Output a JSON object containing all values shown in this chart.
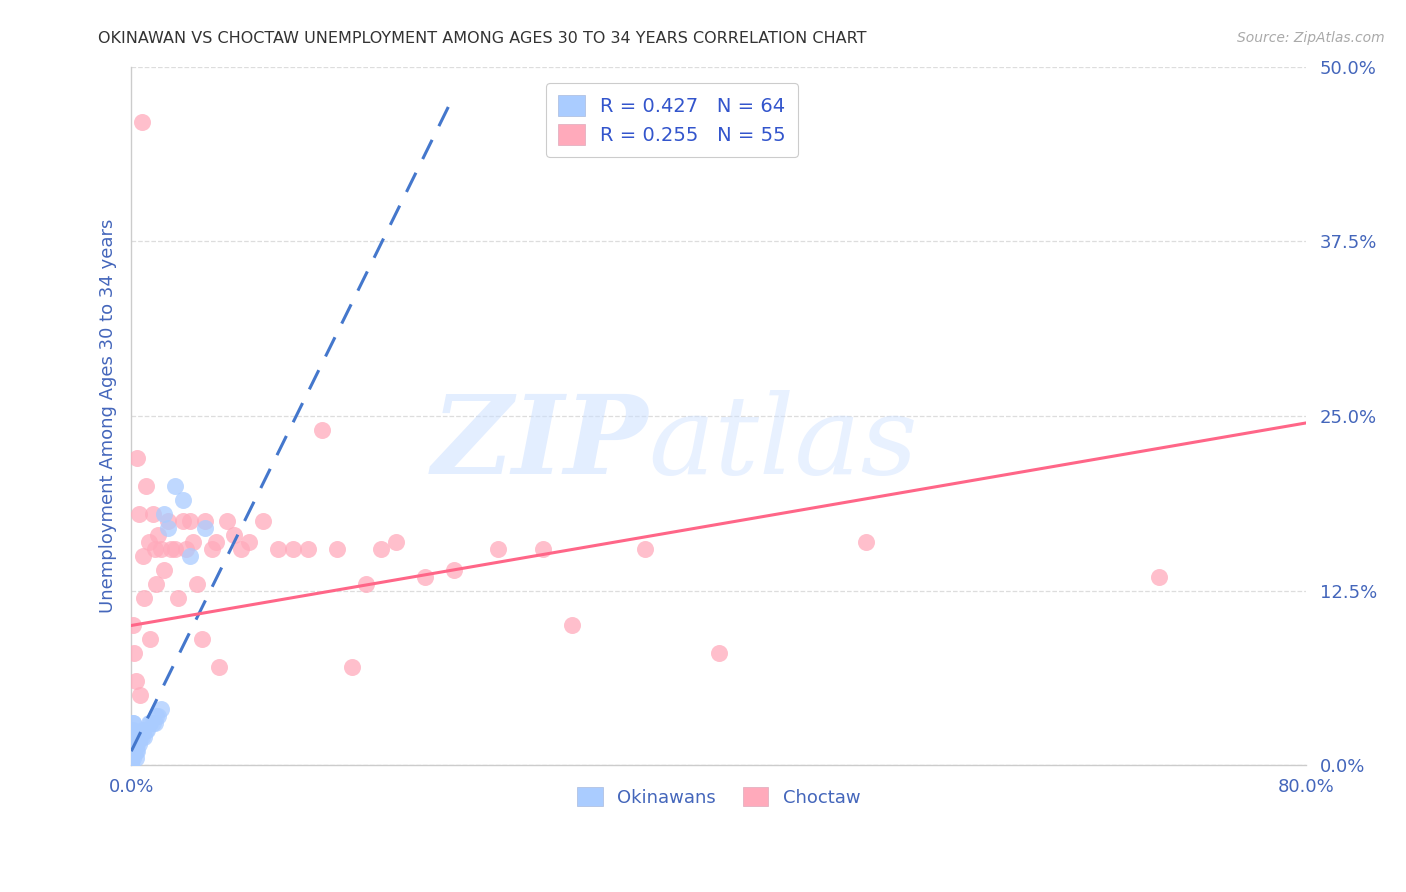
{
  "title": "OKINAWAN VS CHOCTAW UNEMPLOYMENT AMONG AGES 30 TO 34 YEARS CORRELATION CHART",
  "source": "Source: ZipAtlas.com",
  "ylabel": "Unemployment Among Ages 30 to 34 years",
  "xlim": [
    0.0,
    0.8
  ],
  "ylim": [
    0.0,
    0.5
  ],
  "yticks": [
    0.0,
    0.125,
    0.25,
    0.375,
    0.5
  ],
  "ytick_labels": [
    "0.0%",
    "12.5%",
    "25.0%",
    "37.5%",
    "50.0%"
  ],
  "xticks": [
    0.0,
    0.2,
    0.4,
    0.6,
    0.8
  ],
  "xtick_labels": [
    "0.0%",
    "",
    "",
    "",
    "80.0%"
  ],
  "okinawan_color": "#aaccff",
  "choctaw_color": "#ffaabb",
  "okinawan_line_color": "#4477cc",
  "choctaw_line_color": "#ff6688",
  "legend_r_okinawan": "R = 0.427",
  "legend_n_okinawan": "N = 64",
  "legend_r_choctaw": "R = 0.255",
  "legend_n_choctaw": "N = 55",
  "tick_color": "#4466bb",
  "grid_color": "#dddddd",
  "okinawan_x": [
    0.0,
    0.0,
    0.0,
    0.0,
    0.0,
    0.0,
    0.0,
    0.0,
    0.0,
    0.0,
    0.0,
    0.0,
    0.0,
    0.0,
    0.0,
    0.0,
    0.0,
    0.0,
    0.0,
    0.0,
    0.0,
    0.0,
    0.0,
    0.0,
    0.0,
    0.0,
    0.0,
    0.0,
    0.0,
    0.0,
    0.001,
    0.001,
    0.001,
    0.001,
    0.002,
    0.002,
    0.002,
    0.002,
    0.003,
    0.003,
    0.003,
    0.004,
    0.004,
    0.005,
    0.005,
    0.006,
    0.007,
    0.008,
    0.009,
    0.01,
    0.011,
    0.012,
    0.013,
    0.015,
    0.016,
    0.017,
    0.018,
    0.02,
    0.022,
    0.025,
    0.03,
    0.035,
    0.04,
    0.05
  ],
  "okinawan_y": [
    0.0,
    0.0,
    0.0,
    0.0,
    0.0,
    0.0,
    0.0,
    0.0,
    0.0,
    0.0,
    0.005,
    0.005,
    0.005,
    0.005,
    0.005,
    0.005,
    0.005,
    0.01,
    0.01,
    0.01,
    0.01,
    0.01,
    0.015,
    0.015,
    0.015,
    0.015,
    0.02,
    0.02,
    0.02,
    0.025,
    0.025,
    0.03,
    0.03,
    0.005,
    0.01,
    0.015,
    0.02,
    0.01,
    0.005,
    0.01,
    0.015,
    0.01,
    0.015,
    0.015,
    0.02,
    0.02,
    0.02,
    0.025,
    0.02,
    0.025,
    0.025,
    0.03,
    0.03,
    0.03,
    0.03,
    0.035,
    0.035,
    0.04,
    0.18,
    0.17,
    0.2,
    0.19,
    0.15,
    0.17
  ],
  "choctaw_x": [
    0.001,
    0.002,
    0.003,
    0.004,
    0.005,
    0.006,
    0.007,
    0.008,
    0.009,
    0.01,
    0.012,
    0.013,
    0.015,
    0.016,
    0.017,
    0.018,
    0.02,
    0.022,
    0.025,
    0.027,
    0.03,
    0.032,
    0.035,
    0.037,
    0.04,
    0.042,
    0.045,
    0.048,
    0.05,
    0.055,
    0.058,
    0.06,
    0.065,
    0.07,
    0.075,
    0.08,
    0.09,
    0.1,
    0.11,
    0.12,
    0.13,
    0.14,
    0.15,
    0.16,
    0.17,
    0.18,
    0.2,
    0.22,
    0.25,
    0.28,
    0.3,
    0.35,
    0.4,
    0.5,
    0.7
  ],
  "choctaw_y": [
    0.1,
    0.08,
    0.06,
    0.22,
    0.18,
    0.05,
    0.46,
    0.15,
    0.12,
    0.2,
    0.16,
    0.09,
    0.18,
    0.155,
    0.13,
    0.165,
    0.155,
    0.14,
    0.175,
    0.155,
    0.155,
    0.12,
    0.175,
    0.155,
    0.175,
    0.16,
    0.13,
    0.09,
    0.175,
    0.155,
    0.16,
    0.07,
    0.175,
    0.165,
    0.155,
    0.16,
    0.175,
    0.155,
    0.155,
    0.155,
    0.24,
    0.155,
    0.07,
    0.13,
    0.155,
    0.16,
    0.135,
    0.14,
    0.155,
    0.155,
    0.1,
    0.155,
    0.08,
    0.16,
    0.135
  ],
  "ok_trendline_x": [
    0.0,
    0.22
  ],
  "ok_trendline_y": [
    0.01,
    0.48
  ],
  "ch_trendline_x": [
    0.0,
    0.8
  ],
  "ch_trendline_y": [
    0.1,
    0.245
  ]
}
